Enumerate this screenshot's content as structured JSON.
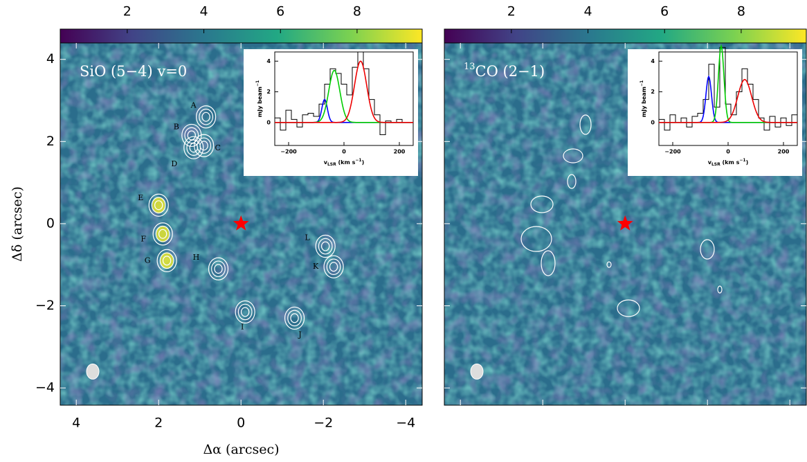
{
  "chart_data": [
    {
      "type": "map",
      "label": "SiO (5−4) v=0",
      "xlabel": "Δα (arcsec)",
      "ylabel": "Δδ (arcsec)",
      "xlim": [
        4.39,
        -4.4
      ],
      "ylim": [
        -4.42,
        4.4
      ],
      "xticks": [
        4,
        2,
        0,
        {
          "value": -2,
          "label": "−2"
        },
        {
          "value": -4,
          "label": "−4"
        }
      ],
      "yticks": [
        4,
        2,
        0,
        {
          "value": -2,
          "label": "−2"
        },
        {
          "value": -4,
          "label": "−4"
        }
      ],
      "show_tick_labels": true,
      "clim": [
        0.25,
        9.7
      ],
      "cticks": [
        2,
        4,
        6,
        8
      ],
      "star": {
        "x": 0,
        "y": 0,
        "color": "#ff0000"
      },
      "beam": {
        "x": 3.6,
        "y": -3.6
      },
      "clumps": [
        {
          "label": "A",
          "x": 0.85,
          "y": 2.6
        },
        {
          "label": "B",
          "x": 1.2,
          "y": 2.15
        },
        {
          "label": "C",
          "x": 0.9,
          "y": 1.9
        },
        {
          "label": "D",
          "x": 1.15,
          "y": 1.85
        },
        {
          "label": "E",
          "x": 2.0,
          "y": 0.45
        },
        {
          "label": "F",
          "x": 1.9,
          "y": -0.25
        },
        {
          "label": "G",
          "x": 1.8,
          "y": -0.9
        },
        {
          "label": "H",
          "x": 0.55,
          "y": -1.1
        },
        {
          "label": "I",
          "x": -0.1,
          "y": -2.15
        },
        {
          "label": "J",
          "x": -1.3,
          "y": -2.3
        },
        {
          "label": "K",
          "x": -2.25,
          "y": -1.05
        },
        {
          "label": "L",
          "x": -2.05,
          "y": -0.55
        }
      ],
      "inset": {
        "type": "line",
        "ylabel": "mJy beam",
        "ylabel_sup": "−1",
        "xlabel_parts": [
          "v",
          "LSR",
          " (km s",
          "−1",
          ")"
        ],
        "xlim": [
          -250,
          250
        ],
        "ylim": [
          -1.5,
          4.6
        ],
        "xticks": [
          {
            "value": -200,
            "label": "−200"
          },
          0,
          200
        ],
        "yticks": [
          0,
          2,
          4
        ],
        "x": [
          -240,
          -220,
          -200,
          -180,
          -160,
          -140,
          -120,
          -100,
          -80,
          -60,
          -40,
          -20,
          0,
          20,
          40,
          60,
          80,
          100,
          120,
          140,
          160,
          180,
          200,
          220,
          240
        ],
        "values": [
          0.3,
          -0.5,
          0.8,
          0.2,
          -0.3,
          0.5,
          0.6,
          0.4,
          1.2,
          2.5,
          3.5,
          3.2,
          2.5,
          1.8,
          3.6,
          4.6,
          3.5,
          1.5,
          0.5,
          -0.8,
          0.1,
          0,
          0.2,
          0,
          0
        ],
        "fits": [
          {
            "color": "#0000ff",
            "amplitude": 1.5,
            "center": -70,
            "width": 10
          },
          {
            "color": "#00cc00",
            "amplitude": 3.4,
            "center": -35,
            "width": 20
          },
          {
            "color": "#ee0000",
            "amplitude": 4.0,
            "center": 60,
            "width": 22
          }
        ]
      }
    },
    {
      "type": "map",
      "label_sup": "13",
      "label": "CO (2−1)",
      "xlim": [
        4.39,
        -4.4
      ],
      "ylim": [
        -4.42,
        4.4
      ],
      "xticks": [
        4,
        2,
        0,
        -2,
        -4
      ],
      "yticks": [
        4,
        2,
        0,
        -2,
        -4
      ],
      "show_tick_labels": false,
      "clim": [
        0.25,
        9.7
      ],
      "cticks": [
        2,
        4,
        6,
        8
      ],
      "star": {
        "x": 0,
        "y": 0,
        "color": "#ff0000"
      },
      "beam": {
        "x": 3.6,
        "y": -3.6
      },
      "clumps": [],
      "inset": {
        "type": "line",
        "ylabel": "mJy beam",
        "ylabel_sup": "−1",
        "xlabel_parts": [
          "v",
          "LSR",
          " (km s",
          "−1",
          ")"
        ],
        "xlim": [
          -250,
          250
        ],
        "ylim": [
          -1.5,
          4.6
        ],
        "xticks": [
          {
            "value": -200,
            "label": "−200"
          },
          0,
          200
        ],
        "yticks": [
          0,
          2,
          4
        ],
        "x": [
          -240,
          -220,
          -200,
          -180,
          -160,
          -140,
          -120,
          -100,
          -80,
          -60,
          -40,
          -20,
          0,
          20,
          40,
          60,
          80,
          100,
          120,
          140,
          160,
          180,
          200,
          220,
          240
        ],
        "values": [
          0.2,
          -0.5,
          0.5,
          0,
          0.3,
          -0.3,
          0.4,
          0.6,
          1.5,
          3.8,
          1.0,
          4.9,
          1.2,
          0.5,
          2.0,
          3.5,
          2.5,
          1.5,
          0.3,
          -0.5,
          0.4,
          -0.3,
          0.3,
          -0.2,
          0.5
        ],
        "fits": [
          {
            "color": "#0000ff",
            "amplitude": 3.0,
            "center": -70,
            "width": 10
          },
          {
            "color": "#00cc00",
            "amplitude": 5.0,
            "center": -25,
            "width": 10
          },
          {
            "color": "#ee0000",
            "amplitude": 2.8,
            "center": 60,
            "width": 25
          }
        ]
      }
    }
  ]
}
